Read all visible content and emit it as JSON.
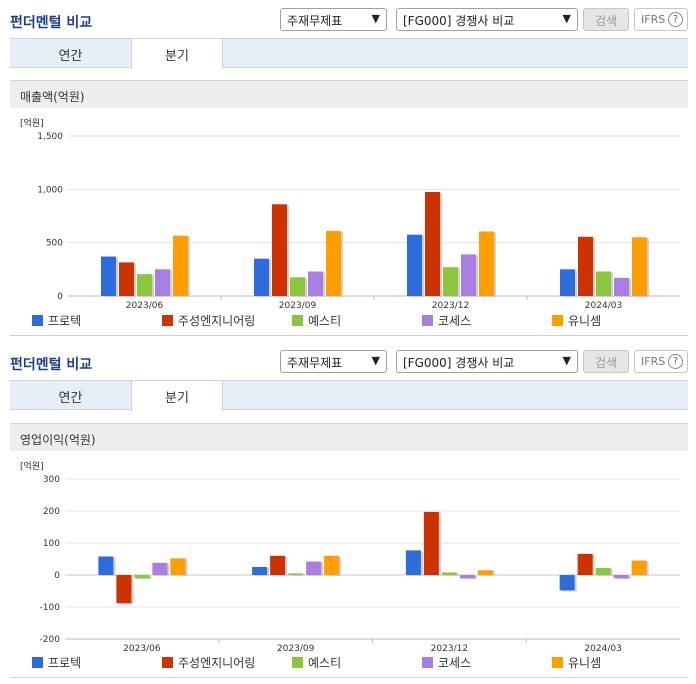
{
  "panels": [
    {
      "title": "펀더멘털 비교",
      "select1": "주재무제표",
      "select2": "[FG000] 경쟁사 비교",
      "search_label": "검색",
      "ifrs_label": "IFRS",
      "help_glyph": "?",
      "tabs": [
        "연간",
        "분기"
      ],
      "active_tab": "분기",
      "chart_title": "매출액(억원)"
    },
    {
      "title": "펀더멘털 비교",
      "select1": "주재무제표",
      "select2": "[FG000] 경쟁사 비교",
      "search_label": "검색",
      "ifrs_label": "IFRS",
      "help_glyph": "?",
      "tabs": [
        "연간",
        "분기"
      ],
      "active_tab": "분기",
      "chart_title": "영업이익(억원)"
    }
  ],
  "colors": {
    "series": [
      "#2c6ddb",
      "#cc3300",
      "#8cc63f",
      "#a87ee0",
      "#ff9e00"
    ],
    "title": "#1e3f88"
  },
  "chart_data": [
    {
      "type": "bar",
      "unit_label": "[억원]",
      "categories": [
        "2023/06",
        "2023/09",
        "2023/12",
        "2024/03"
      ],
      "yticks": [
        0,
        500,
        1000,
        1500
      ],
      "ytick_labels": [
        "0",
        "500",
        "1,000",
        "1,500"
      ],
      "ylim": [
        0,
        1500
      ],
      "legend_position": "bottom",
      "series": [
        {
          "name": "프로텍",
          "values": [
            370,
            350,
            575,
            250
          ]
        },
        {
          "name": "주성엔지니어링",
          "values": [
            315,
            860,
            975,
            555
          ]
        },
        {
          "name": "예스티",
          "values": [
            205,
            175,
            270,
            230
          ]
        },
        {
          "name": "코세스",
          "values": [
            250,
            230,
            390,
            170
          ]
        },
        {
          "name": "유니셈",
          "values": [
            565,
            610,
            605,
            550
          ]
        }
      ]
    },
    {
      "type": "bar",
      "unit_label": "[억원]",
      "categories": [
        "2023/06",
        "2023/09",
        "2023/12",
        "2024/03"
      ],
      "yticks": [
        -200,
        -100,
        0,
        100,
        200,
        300
      ],
      "ytick_labels": [
        "-200",
        "-100",
        "0",
        "100",
        "200",
        "300"
      ],
      "ylim": [
        -200,
        300
      ],
      "legend_position": "bottom",
      "series": [
        {
          "name": "프로텍",
          "values": [
            58,
            25,
            77,
            -48
          ]
        },
        {
          "name": "주성엔지니어링",
          "values": [
            -88,
            60,
            197,
            66
          ]
        },
        {
          "name": "예스티",
          "values": [
            -10,
            5,
            8,
            22
          ]
        },
        {
          "name": "코세스",
          "values": [
            38,
            42,
            -10,
            -10
          ]
        },
        {
          "name": "유니셈",
          "values": [
            52,
            60,
            15,
            45
          ]
        }
      ]
    }
  ]
}
